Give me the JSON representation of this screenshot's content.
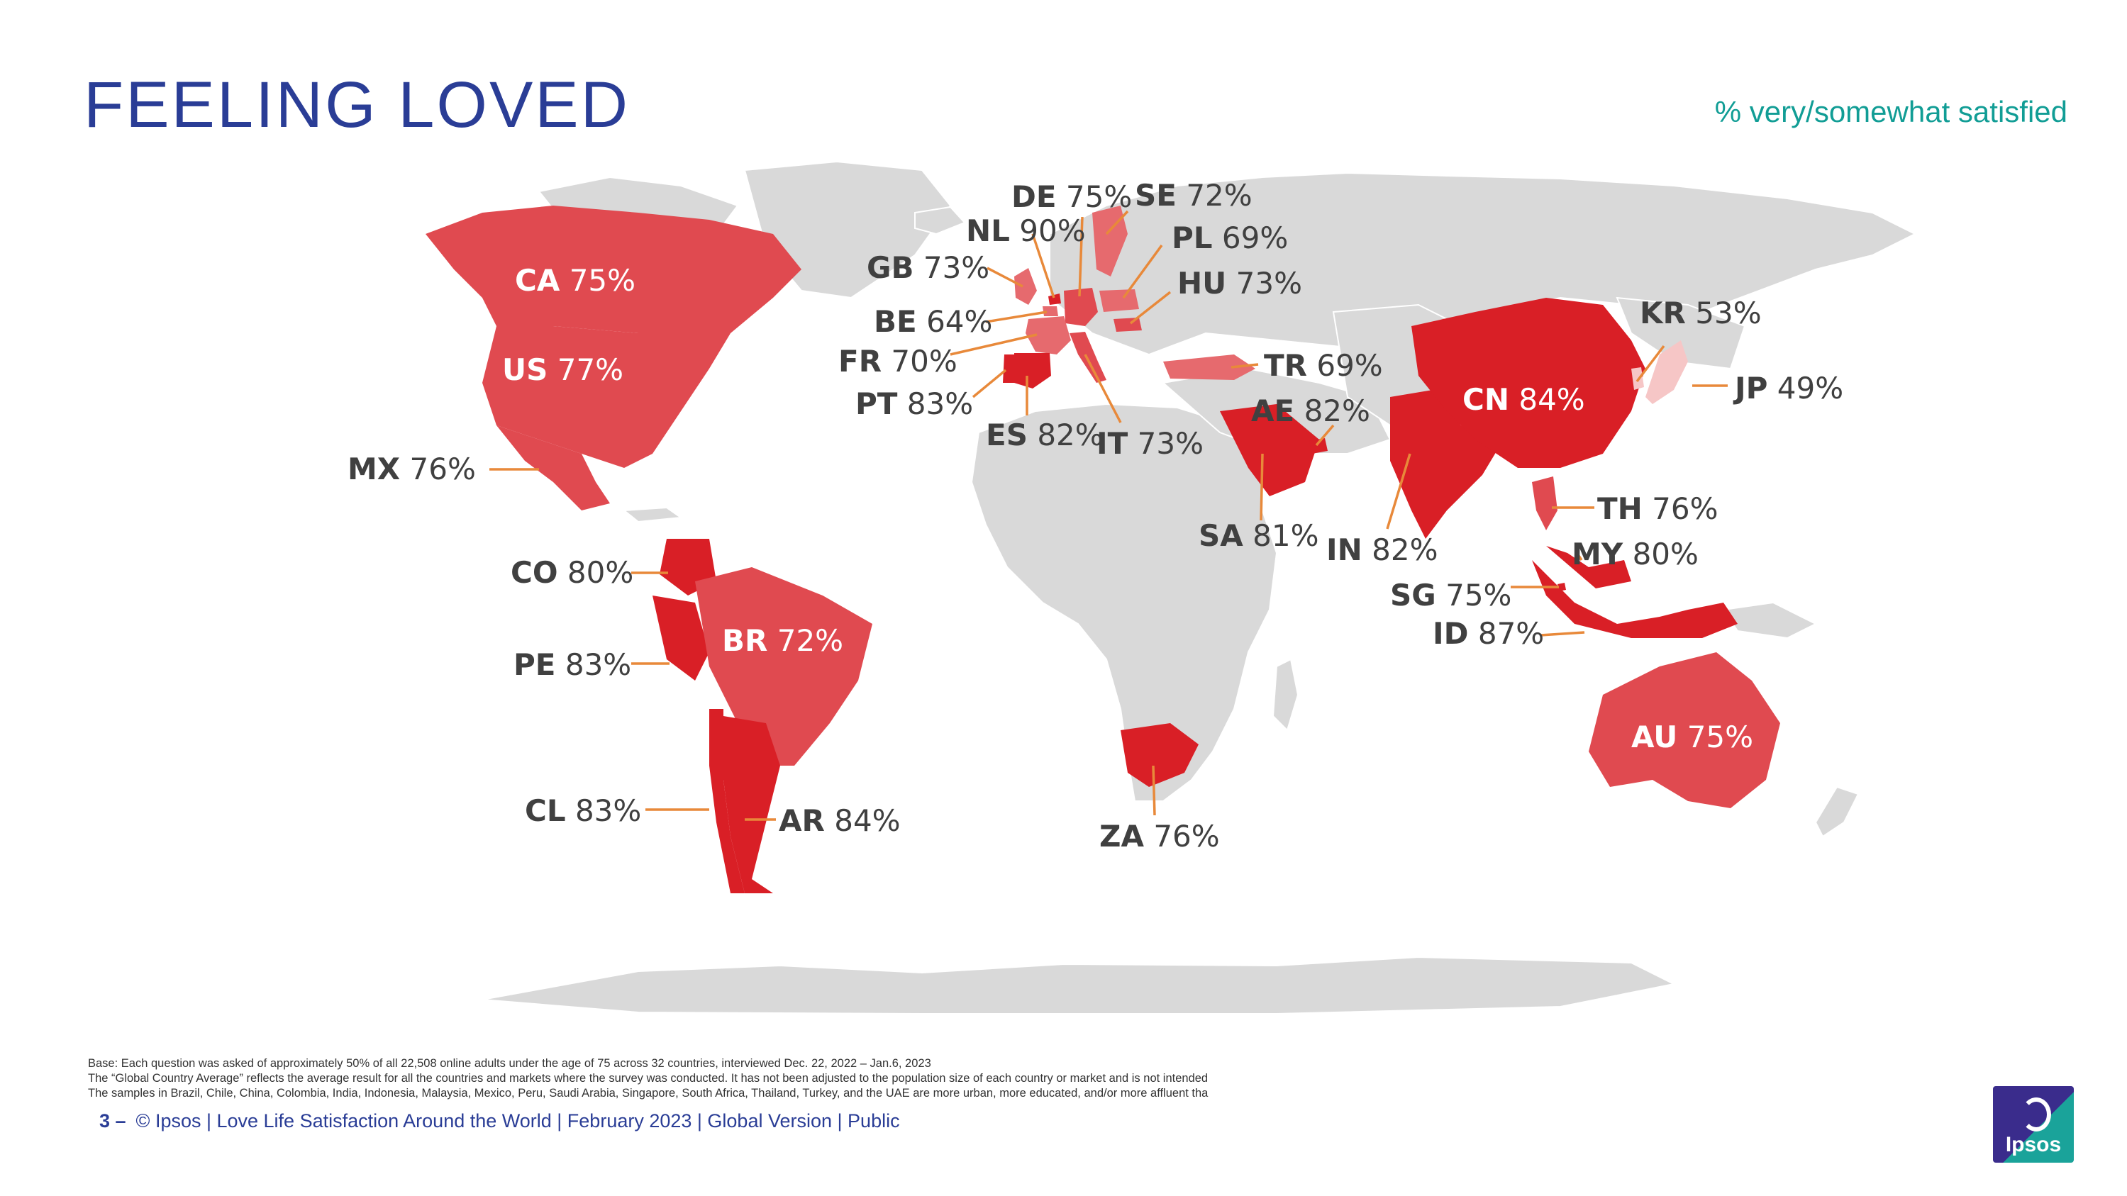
{
  "title": "FEELING LOVED",
  "subtitle": "% very/somewhat satisfied",
  "legend_colors": {
    "high": "#d91f26",
    "mid": "#e04a50",
    "low": "#e66a6e",
    "pale": "#f6c6c6",
    "base_land": "#d9d9d9",
    "leader": "#e8893a"
  },
  "countries": [
    {
      "code": "CA",
      "value": "75%"
    },
    {
      "code": "US",
      "value": "77%"
    },
    {
      "code": "MX",
      "value": "76%"
    },
    {
      "code": "CO",
      "value": "80%"
    },
    {
      "code": "PE",
      "value": "83%"
    },
    {
      "code": "BR",
      "value": "72%"
    },
    {
      "code": "CL",
      "value": "83%"
    },
    {
      "code": "AR",
      "value": "84%"
    },
    {
      "code": "GB",
      "value": "73%"
    },
    {
      "code": "NL",
      "value": "90%"
    },
    {
      "code": "DE",
      "value": "75%"
    },
    {
      "code": "SE",
      "value": "72%"
    },
    {
      "code": "PL",
      "value": "69%"
    },
    {
      "code": "HU",
      "value": "73%"
    },
    {
      "code": "BE",
      "value": "64%"
    },
    {
      "code": "FR",
      "value": "70%"
    },
    {
      "code": "PT",
      "value": "83%"
    },
    {
      "code": "ES",
      "value": "82%"
    },
    {
      "code": "IT",
      "value": "73%"
    },
    {
      "code": "TR",
      "value": "69%"
    },
    {
      "code": "AE",
      "value": "82%"
    },
    {
      "code": "SA",
      "value": "81%"
    },
    {
      "code": "ZA",
      "value": "76%"
    },
    {
      "code": "IN",
      "value": "82%"
    },
    {
      "code": "CN",
      "value": "84%"
    },
    {
      "code": "KR",
      "value": "53%"
    },
    {
      "code": "JP",
      "value": "49%"
    },
    {
      "code": "TH",
      "value": "76%"
    },
    {
      "code": "MY",
      "value": "80%"
    },
    {
      "code": "SG",
      "value": "75%"
    },
    {
      "code": "ID",
      "value": "87%"
    },
    {
      "code": "AU",
      "value": "75%"
    }
  ],
  "footnotes": [
    "Base: Each question was asked of approximately 50% of all 22,508 online adults under the age of 75 across 32 countries, interviewed Dec. 22, 2022 – Jan.6, 2023",
    "The “Global Country Average” reflects the average result for all the countries and markets where the survey was conducted. It has not been adjusted to the population size of each country or market and is not intended",
    "The samples in Brazil, Chile, China, Colombia, India, Indonesia, Malaysia, Mexico, Peru, Saudi Arabia, Singapore, South Africa, Thailand, Turkey, and the UAE are more urban, more educated, and/or more affluent tha"
  ],
  "footer": {
    "page": "3 –",
    "text": "© Ipsos | Love Life Satisfaction Around the World | February 2023 | Global Version | Public"
  },
  "logo": {
    "text": "Ipsos"
  }
}
